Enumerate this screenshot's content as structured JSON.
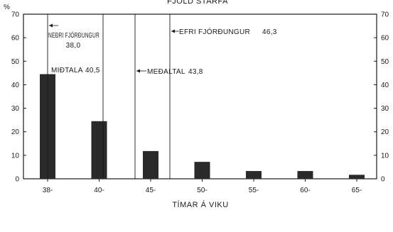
{
  "chart_data": {
    "type": "bar",
    "title": "FJÖLD STARFA",
    "xlabel": "TÍMAR Á VIKU",
    "ylabel": "%",
    "categories": [
      "38-",
      "40-",
      "45-",
      "50-",
      "55-",
      "60-",
      "65-"
    ],
    "values": [
      44.5,
      24.5,
      11.8,
      7.2,
      3.3,
      3.3,
      1.7
    ],
    "ylim": [
      0,
      70
    ],
    "yticks": [
      "0",
      "10",
      "20",
      "30",
      "40",
      "50",
      "60",
      "70"
    ],
    "grid": false,
    "bar_color": "#2a2a2a",
    "reference_lines": [
      {
        "label": "NEÐRI FJÓRÐUNGUR",
        "value_label": "38,0",
        "x": 38.0
      },
      {
        "label": "MIÐTALA",
        "value_label": "40,5",
        "x": 40.5
      },
      {
        "label": "MEÐALTAL",
        "value_label": "43,8",
        "x": 43.8
      },
      {
        "label": "EFRI FJÓRÐUNGUR",
        "value_label": "46,3",
        "x": 46.3
      }
    ]
  }
}
